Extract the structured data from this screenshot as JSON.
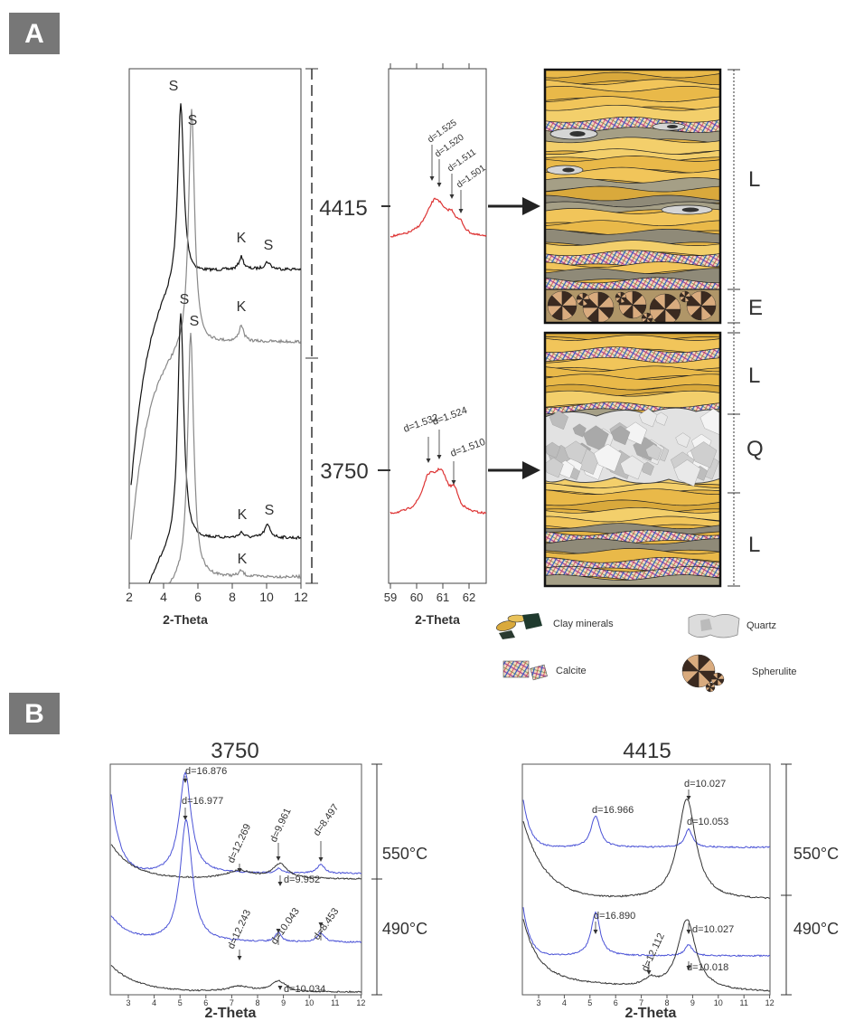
{
  "panel_a": {
    "label": "A",
    "xrd_patterns": {
      "x_label": "2-Theta",
      "x_ticks": [
        2,
        4,
        6,
        8,
        10,
        12
      ],
      "peak_labels": [
        "S",
        "S",
        "K",
        "S",
        "K",
        "S",
        "S",
        "K",
        "S",
        "K"
      ]
    },
    "depths": [
      4415,
      3750
    ],
    "xrd_zoom": {
      "x_label": "2-Theta",
      "x_ticks": [
        59,
        60,
        61,
        62
      ],
      "peaks_4415": [
        "d=1.525",
        "d=1.520",
        "d=1.511",
        "d=1.501"
      ],
      "peaks_3750": [
        "d=1.532",
        "d=1.524",
        "d=1.510"
      ]
    },
    "zones": [
      "L",
      "E",
      "L",
      "Q",
      "L"
    ],
    "legend": [
      "Clay minerals",
      "Quartz",
      "Calcite",
      "Spherulite"
    ]
  },
  "panel_b": {
    "label": "B",
    "plots": [
      {
        "title": 3750,
        "x_label": "2-Theta",
        "x_ticks": [
          3,
          4,
          5,
          6,
          7,
          8,
          9,
          10,
          11,
          12
        ],
        "temperatures": [
          "550°C",
          "490°C"
        ],
        "peaks": [
          "d=16.876",
          "d=16.977",
          "d=12.269",
          "d=9.961",
          "d=8.497",
          "d=9.952",
          "d=12.243",
          "d=10.043",
          "d=8.453",
          "d=10.034"
        ]
      },
      {
        "title": 4415,
        "x_label": "2-Theta",
        "x_ticks": [
          3,
          4,
          5,
          6,
          7,
          8,
          9,
          10,
          11,
          12
        ],
        "temperatures": [
          "550°C",
          "490°C"
        ],
        "peaks": [
          "d=16.966",
          "d=10.027",
          "d=10.053",
          "d=16.890",
          "d=12.112",
          "d=10.027",
          "d=10.018"
        ]
      }
    ]
  }
}
